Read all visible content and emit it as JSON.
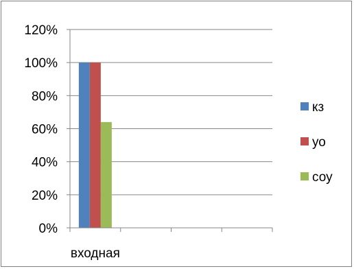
{
  "chart_data": {
    "type": "bar",
    "categories": [
      "входная",
      "",
      "",
      ""
    ],
    "series": [
      {
        "name": "кз",
        "color": "#4f81bd",
        "values": [
          1.0,
          null,
          null,
          null
        ]
      },
      {
        "name": "уо",
        "color": "#c0504d",
        "values": [
          1.0,
          null,
          null,
          null
        ]
      },
      {
        "name": "соу",
        "color": "#9bbb59",
        "values": [
          0.64,
          null,
          null,
          null
        ]
      }
    ],
    "yticks": [
      "0%",
      "20%",
      "40%",
      "60%",
      "80%",
      "100%",
      "120%"
    ],
    "ylim": [
      0,
      1.2
    ],
    "grid": true,
    "legend": "right",
    "title": "",
    "xlabel": "",
    "ylabel": ""
  }
}
